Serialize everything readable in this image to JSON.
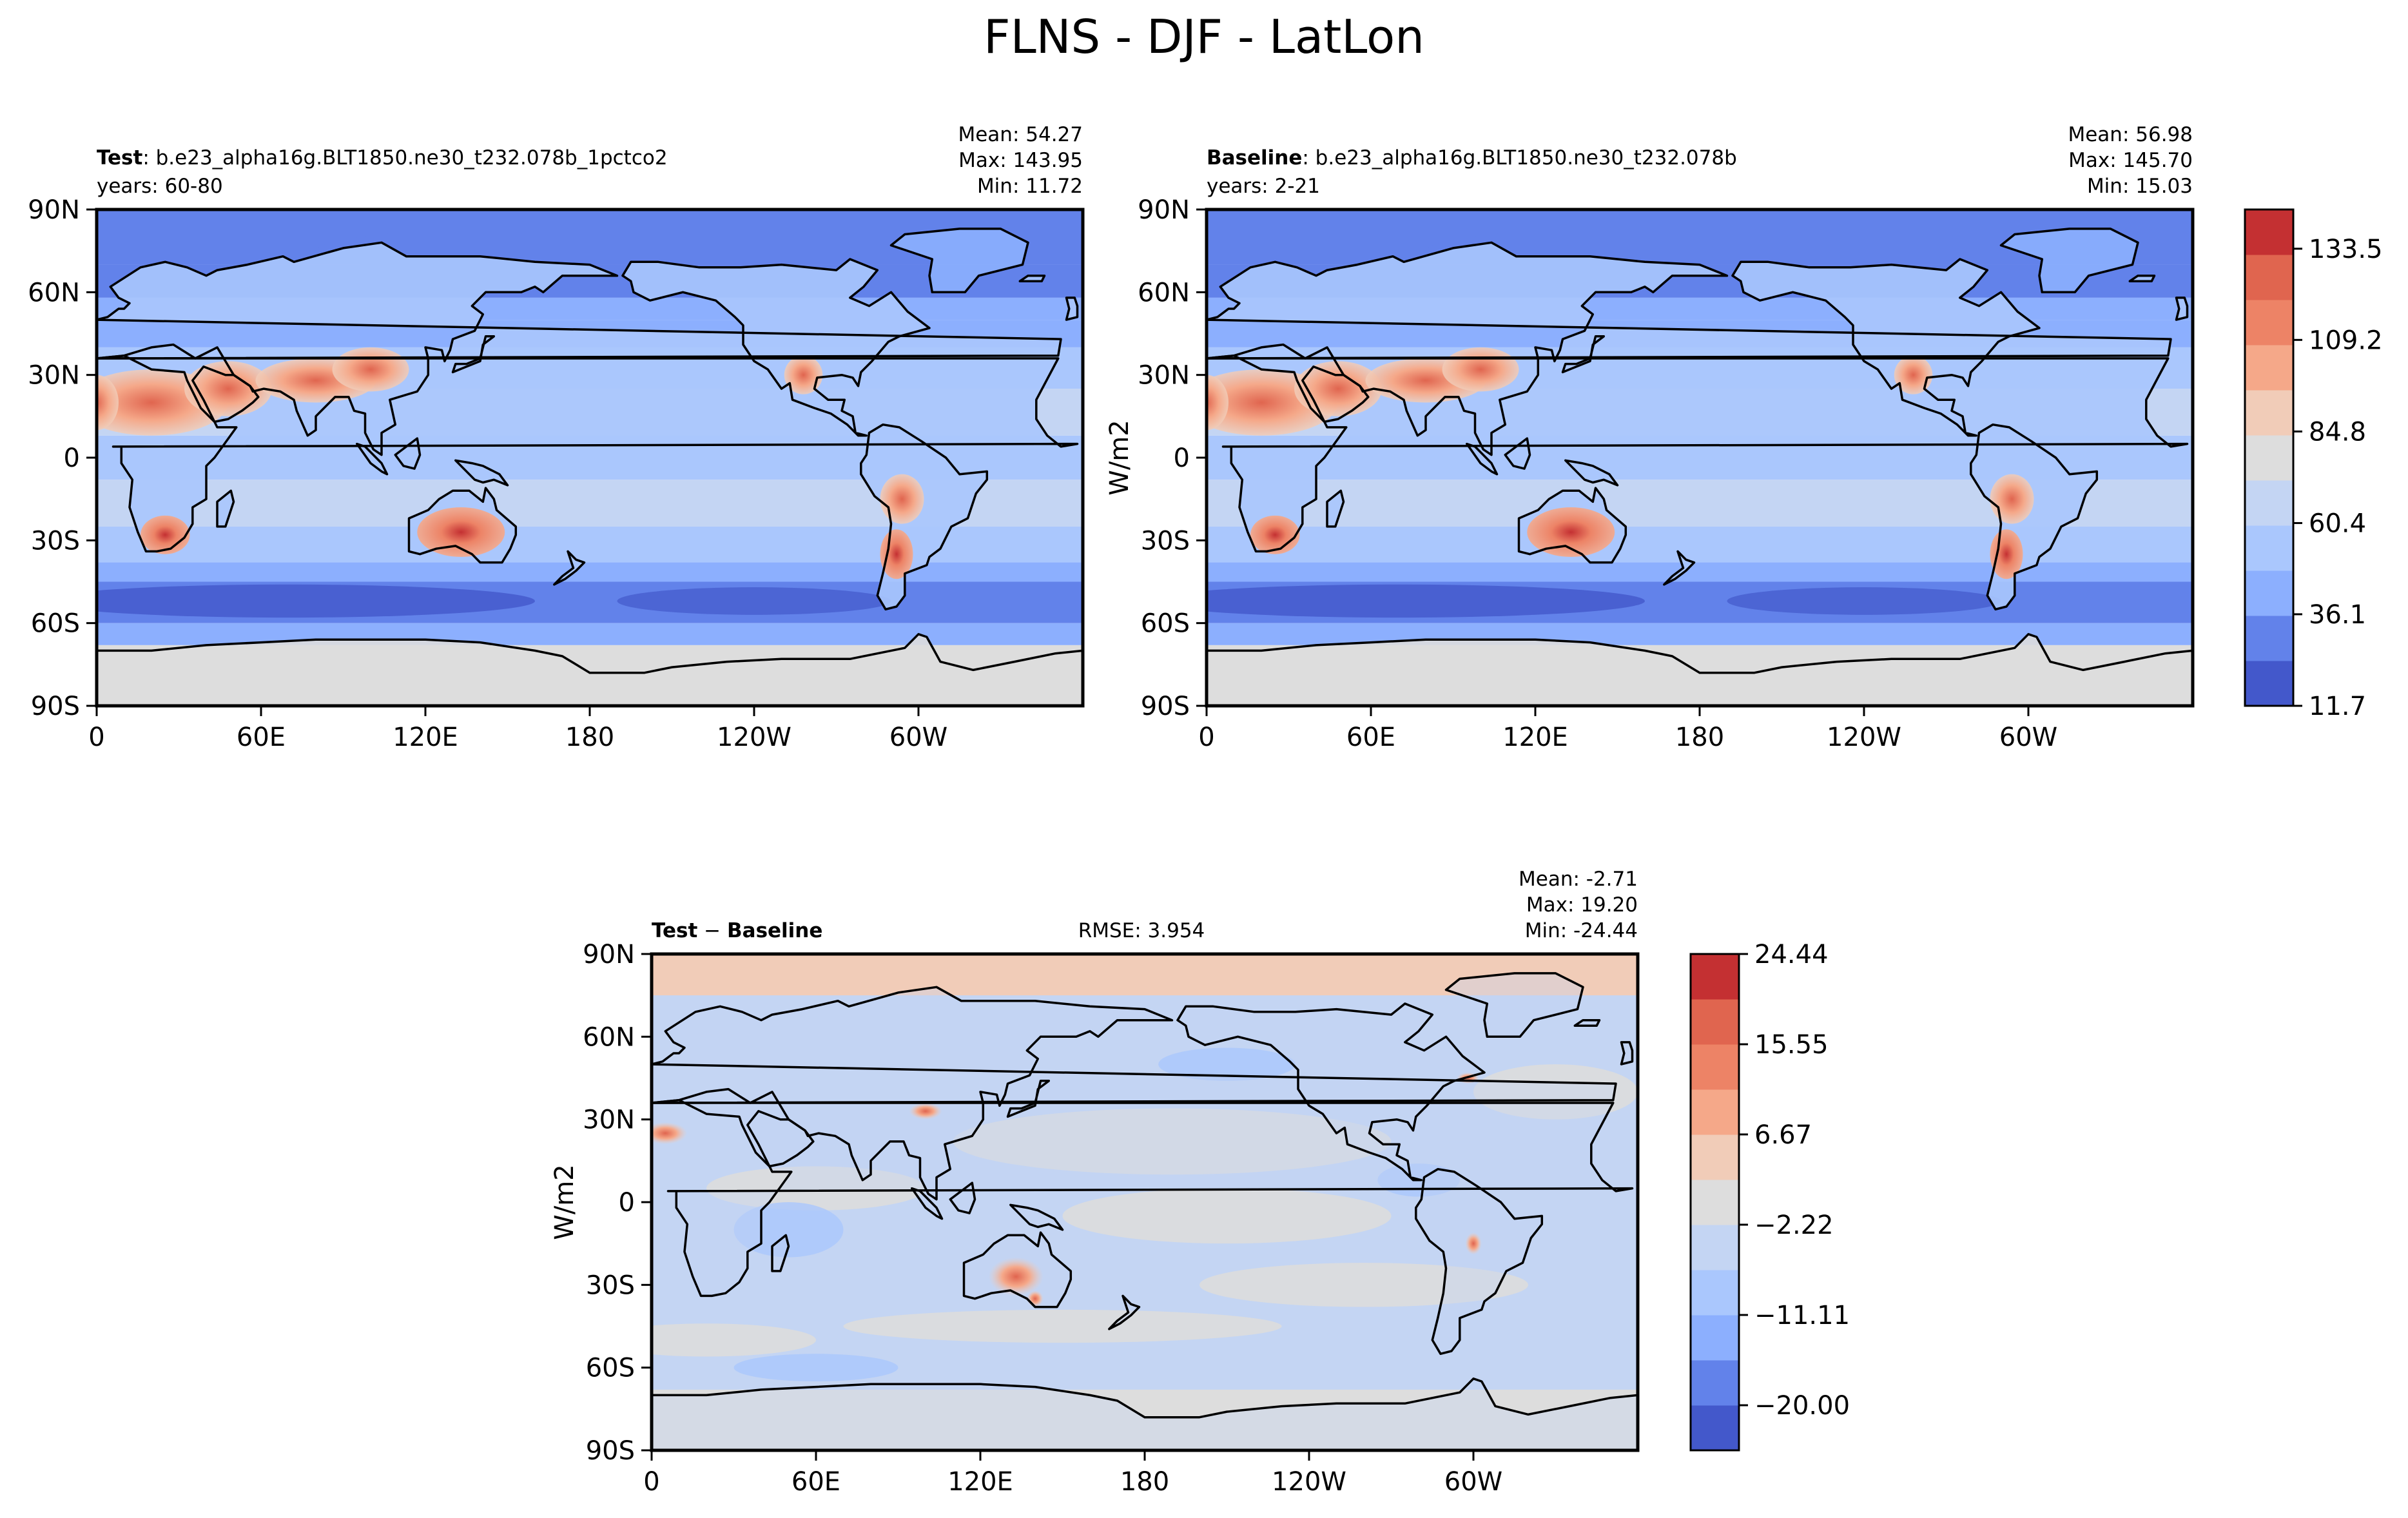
{
  "figure_title": "FLNS - DJF - LatLon",
  "colors": {
    "cmap": [
      "#4358cb",
      "#6282ea",
      "#8caffe",
      "#aac7fd",
      "#c4d5f3",
      "#dddddd",
      "#f1ccb8",
      "#f5a889",
      "#ed8366",
      "#e0654f",
      "#c43032"
    ],
    "ocean": "#aac7fd",
    "land_warm": "#ed8366",
    "coast": "#000000"
  },
  "chart_data": [
    {
      "type": "heatmap",
      "panel": "test",
      "label_bold": "Test",
      "label_rest": ": b.e23_alpha16g.BLT1850.ne30_t232.078b_1pctco2",
      "years": "years: 60-80",
      "stats": [
        "Mean: 54.27",
        "Max: 143.95",
        "Min: 11.72"
      ],
      "xticks": [
        "0",
        "60E",
        "120E",
        "180",
        "120W",
        "60W"
      ],
      "yticks": [
        "90N",
        "60N",
        "30N",
        "0",
        "30S",
        "60S",
        "90S"
      ],
      "xlim": [
        0,
        360
      ],
      "ylim": [
        -90,
        90
      ]
    },
    {
      "type": "heatmap",
      "panel": "baseline",
      "label_bold": "Baseline",
      "label_rest": ": b.e23_alpha16g.BLT1850.ne30_t232.078b",
      "years": "years: 2-21",
      "stats": [
        "Mean: 56.98",
        "Max: 145.70",
        "Min: 15.03"
      ],
      "ylabel": "W/m2",
      "xticks": [
        "0",
        "60E",
        "120E",
        "180",
        "120W",
        "60W"
      ],
      "yticks": [
        "90N",
        "60N",
        "30N",
        "0",
        "30S",
        "60S",
        "90S"
      ],
      "xlim": [
        0,
        360
      ],
      "ylim": [
        -90,
        90
      ],
      "colorbar": {
        "min": 11.7,
        "max": 143.95,
        "ticks": [
          11.7,
          36.1,
          60.4,
          84.8,
          109.2,
          133.5
        ],
        "tick_labels": [
          "11.7",
          "36.1",
          "60.4",
          "84.8",
          "109.2",
          "133.5"
        ]
      }
    },
    {
      "type": "heatmap",
      "panel": "diff",
      "label_bold": "Test",
      "label_minus": " − ",
      "label_bold2": "Baseline",
      "rmse": "RMSE: 3.954",
      "stats": [
        "Mean: -2.71",
        "Max: 19.20",
        "Min: -24.44"
      ],
      "ylabel": "W/m2",
      "xticks": [
        "0",
        "60E",
        "120E",
        "180",
        "120W",
        "60W"
      ],
      "yticks": [
        "90N",
        "60N",
        "30N",
        "0",
        "30S",
        "60S",
        "90S"
      ],
      "xlim": [
        0,
        360
      ],
      "ylim": [
        -90,
        90
      ],
      "colorbar": {
        "min": -24.44,
        "max": 24.44,
        "ticks": [
          -20.0,
          -11.11,
          -2.22,
          6.67,
          15.55,
          24.44
        ],
        "tick_labels": [
          "−20.00",
          "−11.11",
          "−2.22",
          "6.67",
          "15.55",
          "24.44"
        ]
      }
    }
  ]
}
